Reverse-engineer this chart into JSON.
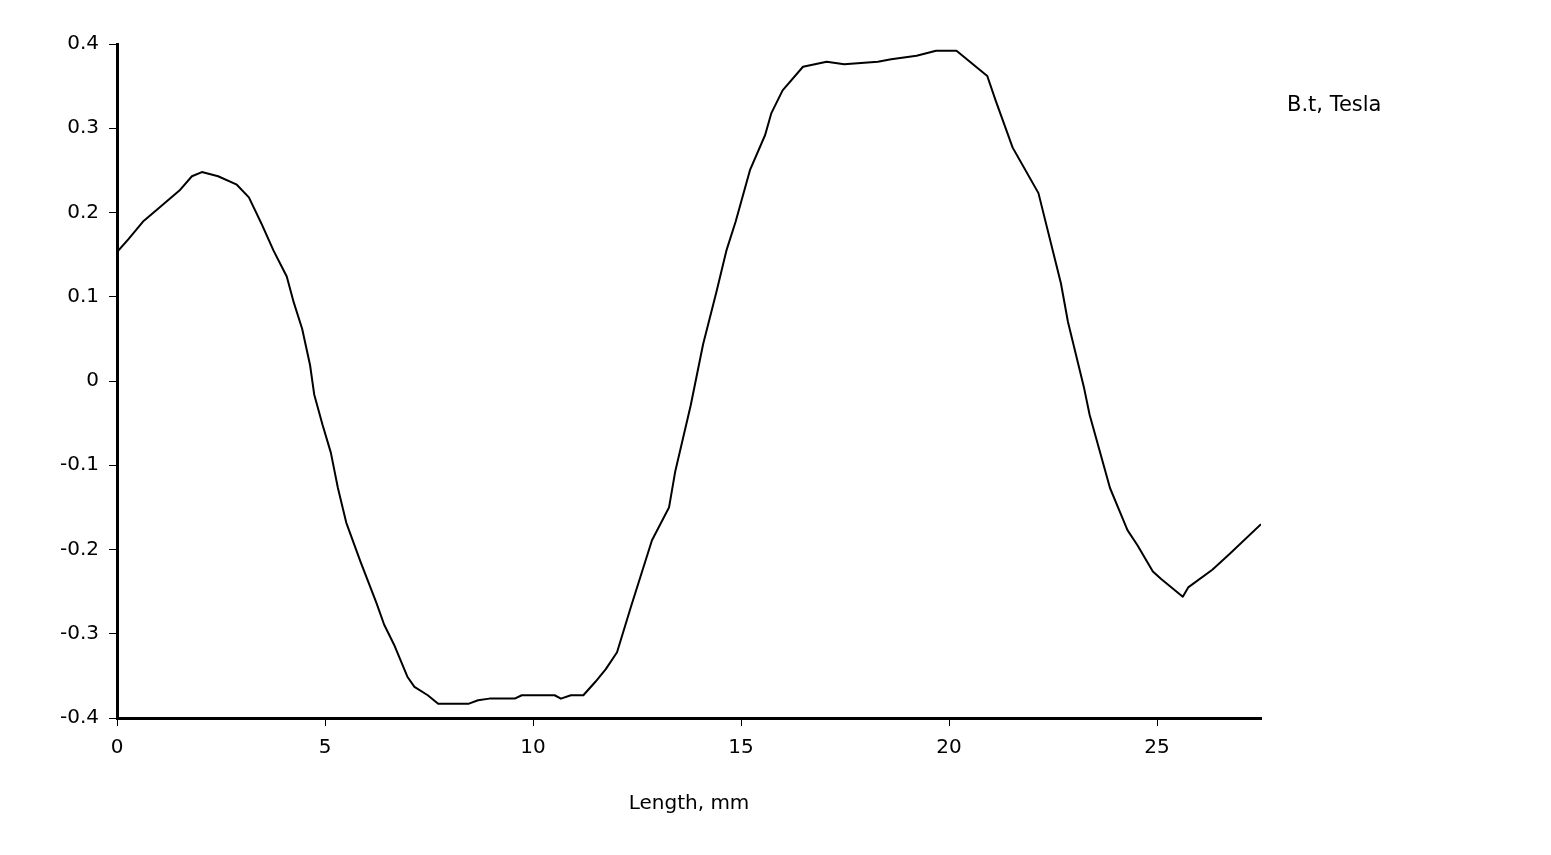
{
  "chart_data": {
    "type": "line",
    "xlabel": "Length, mm",
    "ylabel": "B.t, Tesla",
    "xlim": [
      0,
      27.5
    ],
    "xticks": [
      0,
      5,
      10,
      15,
      20,
      25
    ],
    "ylim": [
      -0.4,
      0.4
    ],
    "yticks": [
      0.4,
      0.3,
      0.2,
      0.1,
      0,
      -0.1,
      -0.2,
      -0.3,
      -0.4
    ],
    "grid": false,
    "legend": false,
    "marker": "none",
    "line_style": "solid",
    "series": [
      {
        "color": "#000000",
        "x": [
          0,
          0.27,
          0.64,
          1.0,
          1.5,
          1.8,
          2.04,
          2.43,
          2.88,
          3.17,
          3.47,
          3.76,
          4.08,
          4.25,
          4.45,
          4.64,
          4.74,
          4.94,
          5.14,
          5.31,
          5.51,
          5.85,
          6.24,
          6.42,
          6.66,
          6.98,
          7.15,
          7.47,
          7.72,
          8.46,
          8.68,
          8.95,
          9.56,
          9.73,
          10.52,
          10.67,
          10.91,
          11.21,
          11.5,
          11.75,
          12.02,
          12.36,
          12.86,
          13.27,
          13.42,
          13.79,
          14.09,
          14.41,
          14.65,
          14.87,
          15.22,
          15.58,
          15.73,
          16.0,
          16.49,
          17.06,
          17.48,
          18.29,
          18.61,
          19.22,
          19.69,
          20.18,
          20.92,
          21.12,
          21.53,
          22.15,
          22.69,
          22.86,
          23.25,
          23.38,
          23.87,
          24.29,
          24.53,
          24.9,
          25.1,
          25.62,
          25.75,
          26.33,
          26.75,
          27.5
        ],
        "values": [
          0.153,
          0.168,
          0.19,
          0.205,
          0.226,
          0.243,
          0.248,
          0.243,
          0.233,
          0.218,
          0.187,
          0.155,
          0.124,
          0.093,
          0.062,
          0.019,
          -0.016,
          -0.052,
          -0.085,
          -0.127,
          -0.168,
          -0.214,
          -0.264,
          -0.289,
          -0.313,
          -0.351,
          -0.363,
          -0.373,
          -0.383,
          -0.383,
          -0.379,
          -0.377,
          -0.377,
          -0.373,
          -0.373,
          -0.377,
          -0.373,
          -0.373,
          -0.357,
          -0.342,
          -0.322,
          -0.267,
          -0.189,
          -0.15,
          -0.107,
          -0.029,
          0.044,
          0.106,
          0.155,
          0.189,
          0.251,
          0.292,
          0.318,
          0.345,
          0.373,
          0.379,
          0.376,
          0.379,
          0.382,
          0.386,
          0.392,
          0.392,
          0.362,
          0.333,
          0.277,
          0.223,
          0.116,
          0.07,
          -0.009,
          -0.04,
          -0.127,
          -0.177,
          -0.195,
          -0.226,
          -0.235,
          -0.256,
          -0.245,
          -0.224,
          -0.205,
          -0.17
        ]
      }
    ]
  }
}
